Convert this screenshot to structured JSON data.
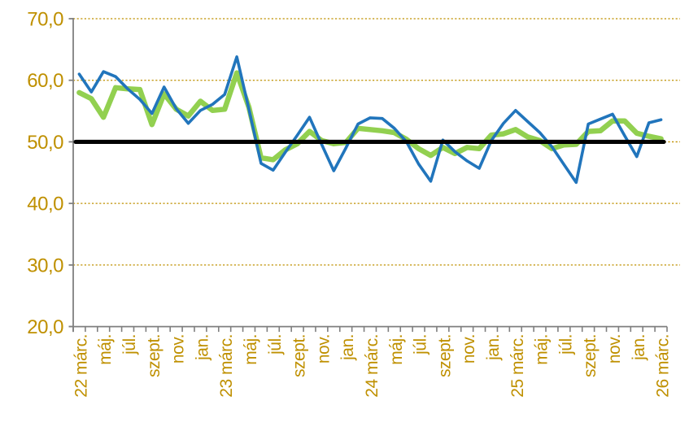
{
  "chart_data": {
    "type": "line",
    "title": "",
    "n_points": 49,
    "x_tick_labels": [
      "22 márc.",
      "máj.",
      "júl.",
      "szept.",
      "nov.",
      "jan.",
      "23 márc.",
      "máj.",
      "júl.",
      "szept.",
      "nov.",
      "jan.",
      "24 márc.",
      "máj.",
      "júl.",
      "szept.",
      "nov.",
      "jan.",
      "25 márc.",
      "máj.",
      "júl.",
      "szept.",
      "nov.",
      "jan.",
      "26 márc."
    ],
    "x_label_every_n_points": 2,
    "y_tick_labels": [
      "70,0",
      "60,0",
      "50,0",
      "40,0",
      "30,0",
      "20,0"
    ],
    "y_tick_values": [
      70,
      60,
      50,
      40,
      30,
      20
    ],
    "ylim": [
      20,
      70
    ],
    "grid": "horizontal-dotted",
    "legend": "none",
    "reference_line": {
      "value": 50,
      "color": "#000000"
    },
    "series": [
      {
        "name": "blue-line",
        "color": "#2175BC",
        "values": [
          61.0,
          58.1,
          61.4,
          60.6,
          58.6,
          56.9,
          54.6,
          58.9,
          55.4,
          53.0,
          55.1,
          56.1,
          57.7,
          63.8,
          55.3,
          46.5,
          45.4,
          48.3,
          51.1,
          54.0,
          49.6,
          45.3,
          49.0,
          52.9,
          53.9,
          53.8,
          52.2,
          50.0,
          46.4,
          43.6,
          50.3,
          48.4,
          46.9,
          45.7,
          50.2,
          53.0,
          55.1,
          53.3,
          51.5,
          49.2,
          46.3,
          43.4,
          52.9,
          53.7,
          54.5,
          51.0,
          47.6,
          53.1,
          53.6
        ]
      },
      {
        "name": "green-line",
        "color": "#92D050",
        "values": [
          58.0,
          57.0,
          54.0,
          58.8,
          58.6,
          58.5,
          52.8,
          57.8,
          55.3,
          54.2,
          56.6,
          55.1,
          55.3,
          61.2,
          55.6,
          47.4,
          47.1,
          48.7,
          49.7,
          51.7,
          50.2,
          49.7,
          49.9,
          52.2,
          52.0,
          51.8,
          51.5,
          50.4,
          48.9,
          47.8,
          49.1,
          48.1,
          49.1,
          48.9,
          51.1,
          51.3,
          52.0,
          50.8,
          50.2,
          48.9,
          49.5,
          49.6,
          51.7,
          51.8,
          53.4,
          53.4,
          51.4,
          50.9,
          50.5
        ]
      }
    ],
    "colors": {
      "grid_and_labels": "#BF9000",
      "axis": "#7F7F7F",
      "background": "#FFFFFF",
      "reference_line": "#000000",
      "series_blue": "#2175BC",
      "series_green": "#92D050"
    }
  }
}
